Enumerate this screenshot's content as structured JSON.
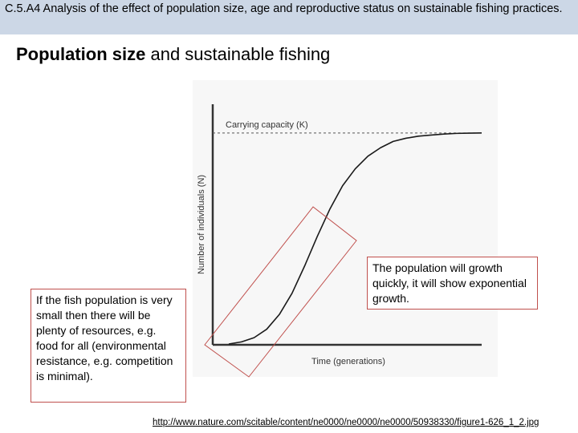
{
  "header": {
    "text": "C.5.A4 Analysis of the effect of population size, age and reproductive status on sustainable fishing practices."
  },
  "slide": {
    "title_bold": "Population size",
    "title_rest": " and sustainable fishing"
  },
  "callouts": {
    "left": "If the fish population is very small then there will be plenty of resources, e.g. food for all (environmental resistance, e.g. competition is minimal).",
    "right": "The population will growth quickly, it will show exponential growth."
  },
  "source": {
    "link_text": "http://www.nature.com/scitable/content/ne0000/ne0000/ne0000/50938330/figure1-626_1_2.jpg"
  },
  "colors": {
    "header_bg": "#ccd7e6",
    "highlight": "#c0504d",
    "curve": "#1a1a1a"
  },
  "chart_data": {
    "type": "line",
    "title": "",
    "xlabel": "Time (generations)",
    "ylabel": "Number of individuals (N)",
    "reference_line": {
      "label": "Carrying capacity (K)",
      "style": "dashed",
      "y": 1.0
    },
    "xlim": [
      0,
      1
    ],
    "ylim": [
      0,
      1.14
    ],
    "grid": false,
    "series": [
      {
        "x": [
          0,
          0.05,
          0.1,
          0.15,
          0.2,
          0.25,
          0.3,
          0.35,
          0.4,
          0.45,
          0.5,
          0.55,
          0.6,
          0.65,
          0.7,
          0.75,
          0.8,
          0.85,
          0.9,
          0.95,
          1.0
        ],
        "values": [
          0.0,
          0.01,
          0.03,
          0.07,
          0.14,
          0.24,
          0.37,
          0.51,
          0.64,
          0.75,
          0.83,
          0.89,
          0.93,
          0.96,
          0.975,
          0.985,
          0.99,
          0.995,
          0.998,
          0.999,
          1.0
        ]
      }
    ]
  }
}
